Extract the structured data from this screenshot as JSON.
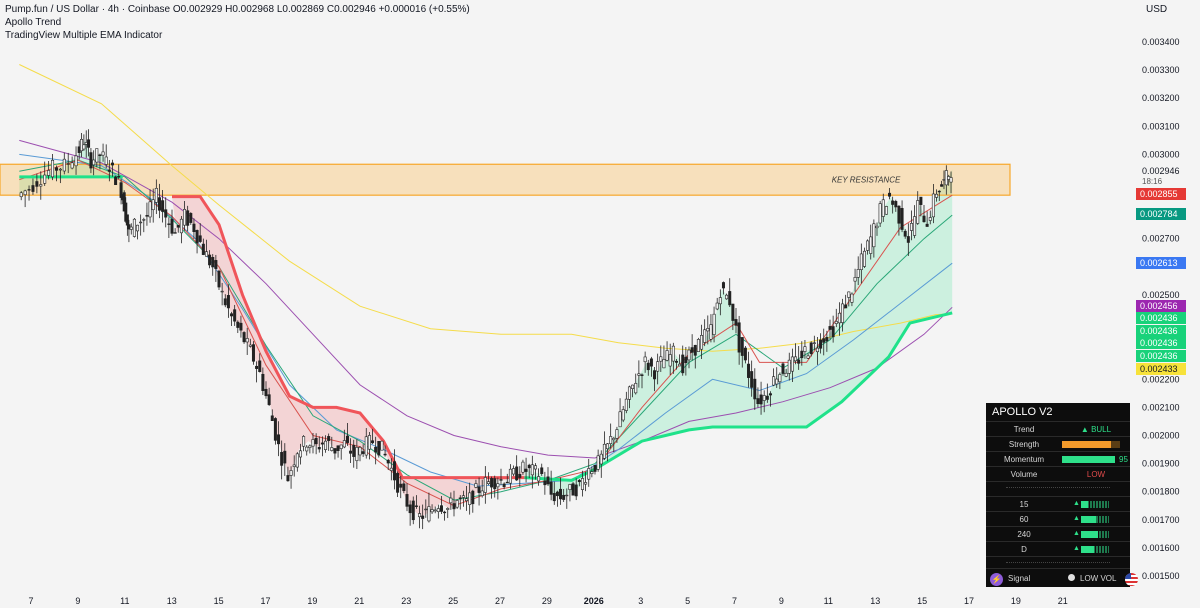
{
  "header": {
    "line1": "Pump.fun / US Dollar · 4h · Coinbase  O0.002929  H0.002968  L0.002869  C0.002946  +0.000016 (+0.55%)",
    "line2": "Apollo Trend",
    "line3": "TradingView Multiple EMA Indicator"
  },
  "currency": "USD",
  "chart_data": {
    "type": "candlestick",
    "symbol": "Pump.fun / US Dollar",
    "interval": "4h",
    "exchange": "Coinbase",
    "ohlc_last": {
      "open": 0.002929,
      "high": 0.002968,
      "low": 0.002869,
      "close": 0.002946,
      "change": "+0.000016",
      "change_pct": "+0.55%"
    },
    "ylim": [
      0.00146,
      0.00348
    ],
    "y_ticks": [
      "0.003400",
      "0.003300",
      "0.003200",
      "0.003100",
      "0.003000",
      "0.002700",
      "0.002500",
      "0.002200",
      "0.002100",
      "0.002000",
      "0.001900",
      "0.001800",
      "0.001700",
      "0.001600",
      "0.001500"
    ],
    "x_ticks": [
      "7",
      "9",
      "11",
      "13",
      "15",
      "17",
      "19",
      "21",
      "23",
      "25",
      "27",
      "29",
      "2026",
      "3",
      "5",
      "7",
      "9",
      "11",
      "13",
      "15",
      "17",
      "19",
      "21"
    ],
    "x_range_days": [
      6.5,
      22.5
    ],
    "key_resistance": {
      "label": "KEY RESISTANCE",
      "low": 0.002855,
      "high": 0.002965
    },
    "price_labels": [
      {
        "text": "0.002946",
        "kind": "current",
        "color": "#131722"
      },
      {
        "text": "18:16",
        "kind": "countdown",
        "color": "#131722"
      },
      {
        "text": "0.002855",
        "color": "#e53935"
      },
      {
        "text": "0.002784",
        "color": "#089981"
      },
      {
        "text": "0.002613",
        "color": "#3a78f2"
      },
      {
        "text": "0.002456",
        "color": "#9c27b0"
      },
      {
        "text": "0.002436",
        "color": "#18d27a"
      },
      {
        "text": "0.002436",
        "color": "#18d27a"
      },
      {
        "text": "0.002436",
        "color": "#18d27a"
      },
      {
        "text": "0.002436",
        "color": "#18d27a"
      },
      {
        "text": "0.002433",
        "color": "#f7e23a"
      }
    ],
    "price_series": [
      [
        6.5,
        0.00285
      ],
      [
        7.0,
        0.00288
      ],
      [
        7.5,
        0.00292
      ],
      [
        8.0,
        0.00295
      ],
      [
        8.5,
        0.00296
      ],
      [
        9.0,
        0.003
      ],
      [
        9.3,
        0.00305
      ],
      [
        9.6,
        0.00298
      ],
      [
        10.0,
        0.003
      ],
      [
        10.4,
        0.00296
      ],
      [
        10.8,
        0.0029
      ],
      [
        11.0,
        0.00282
      ],
      [
        11.2,
        0.00272
      ],
      [
        11.6,
        0.00276
      ],
      [
        12.0,
        0.00278
      ],
      [
        12.4,
        0.00285
      ],
      [
        12.8,
        0.00278
      ],
      [
        13.2,
        0.00272
      ],
      [
        13.6,
        0.00278
      ],
      [
        14.0,
        0.00274
      ],
      [
        14.4,
        0.00266
      ],
      [
        14.8,
        0.0026
      ],
      [
        15.2,
        0.0025
      ],
      [
        15.6,
        0.00242
      ],
      [
        16.0,
        0.00236
      ],
      [
        16.4,
        0.0023
      ],
      [
        16.8,
        0.00222
      ],
      [
        17.2,
        0.0021
      ],
      [
        17.6,
        0.00196
      ],
      [
        18.0,
        0.00185
      ],
      [
        18.4,
        0.00195
      ],
      [
        18.8,
        0.00198
      ],
      [
        19.2,
        0.00196
      ],
      [
        19.6,
        0.00198
      ],
      [
        20.0,
        0.00195
      ],
      [
        20.4,
        0.00197
      ],
      [
        20.8,
        0.00193
      ],
      [
        21.2,
        0.00196
      ],
      [
        21.6,
        0.00198
      ],
      [
        22.0,
        0.00195
      ],
      [
        22.4,
        0.00188
      ],
      [
        22.8,
        0.0018
      ],
      [
        23.2,
        0.00174
      ],
      [
        23.6,
        0.00171
      ],
      [
        24.0,
        0.00173
      ],
      [
        24.4,
        0.00176
      ],
      [
        24.8,
        0.00174
      ],
      [
        25.2,
        0.00177
      ],
      [
        25.6,
        0.00176
      ],
      [
        26.0,
        0.0018
      ],
      [
        26.4,
        0.00183
      ],
      [
        26.8,
        0.00184
      ],
      [
        27.2,
        0.00184
      ],
      [
        27.6,
        0.00186
      ],
      [
        28.0,
        0.00188
      ],
      [
        28.4,
        0.00187
      ],
      [
        28.8,
        0.00186
      ],
      [
        29.2,
        0.00179
      ],
      [
        29.6,
        0.00178
      ],
      [
        30.0,
        0.0018
      ],
      [
        30.4,
        0.00182
      ],
      [
        30.8,
        0.00188
      ],
      [
        31.2,
        0.0019
      ],
      [
        31.6,
        0.00196
      ],
      [
        32.0,
        0.00203
      ],
      [
        32.4,
        0.00212
      ],
      [
        32.8,
        0.0022
      ],
      [
        33.2,
        0.00226
      ],
      [
        33.6,
        0.00223
      ],
      [
        34.0,
        0.00227
      ],
      [
        34.4,
        0.00229
      ],
      [
        34.8,
        0.00225
      ],
      [
        35.2,
        0.0023
      ],
      [
        35.6,
        0.00234
      ],
      [
        36.0,
        0.00238
      ],
      [
        36.4,
        0.00252
      ],
      [
        36.8,
        0.00248
      ],
      [
        37.2,
        0.00232
      ],
      [
        37.6,
        0.00222
      ],
      [
        38.0,
        0.00212
      ],
      [
        38.4,
        0.00215
      ],
      [
        38.8,
        0.00222
      ],
      [
        39.2,
        0.00224
      ],
      [
        39.6,
        0.00226
      ],
      [
        40.0,
        0.0023
      ],
      [
        40.4,
        0.00232
      ],
      [
        40.8,
        0.00235
      ],
      [
        41.2,
        0.00238
      ],
      [
        41.6,
        0.00245
      ],
      [
        42.0,
        0.00252
      ],
      [
        42.4,
        0.00262
      ],
      [
        42.8,
        0.0027
      ],
      [
        43.2,
        0.0028
      ],
      [
        43.6,
        0.00285
      ],
      [
        44.0,
        0.00278
      ],
      [
        44.4,
        0.0027
      ],
      [
        44.8,
        0.00282
      ],
      [
        45.2,
        0.00276
      ],
      [
        45.6,
        0.00287
      ],
      [
        45.9,
        0.0029
      ],
      [
        46.2,
        0.002946
      ]
    ],
    "series": [
      {
        "name": "EMA (yellow)",
        "color": "#f5dc4a",
        "values": [
          [
            6.5,
            0.00332
          ],
          [
            10,
            0.00318
          ],
          [
            13,
            0.00296
          ],
          [
            15,
            0.00282
          ],
          [
            18,
            0.00262
          ],
          [
            21,
            0.00246
          ],
          [
            24,
            0.00238
          ],
          [
            27,
            0.00236
          ],
          [
            30,
            0.00236
          ],
          [
            32,
            0.00233
          ],
          [
            34,
            0.00231
          ],
          [
            36,
            0.0023
          ],
          [
            38,
            0.00231
          ],
          [
            40,
            0.00233
          ],
          [
            42,
            0.00237
          ],
          [
            44,
            0.0024
          ],
          [
            45.5,
            0.00243
          ],
          [
            46.2,
            0.002433
          ]
        ]
      },
      {
        "name": "EMA (purple)",
        "color": "#9c4fb0",
        "values": [
          [
            6.5,
            0.00305
          ],
          [
            10,
            0.00297
          ],
          [
            13,
            0.00283
          ],
          [
            15,
            0.0027
          ],
          [
            17,
            0.00254
          ],
          [
            19,
            0.00236
          ],
          [
            21,
            0.00218
          ],
          [
            23,
            0.00207
          ],
          [
            25,
            0.002
          ],
          [
            27,
            0.00196
          ],
          [
            29,
            0.00193
          ],
          [
            31,
            0.00192
          ],
          [
            33,
            0.00198
          ],
          [
            35,
            0.00205
          ],
          [
            37,
            0.00208
          ],
          [
            39,
            0.00212
          ],
          [
            41,
            0.00217
          ],
          [
            43,
            0.00224
          ],
          [
            45,
            0.00236
          ],
          [
            46.2,
            0.002456
          ]
        ]
      },
      {
        "name": "EMA (blue)",
        "color": "#5a9bd5",
        "values": [
          [
            6.5,
            0.003
          ],
          [
            10,
            0.00296
          ],
          [
            12,
            0.00285
          ],
          [
            14,
            0.0027
          ],
          [
            16,
            0.00245
          ],
          [
            18,
            0.00218
          ],
          [
            20,
            0.00202
          ],
          [
            22,
            0.00195
          ],
          [
            24,
            0.00187
          ],
          [
            26,
            0.00182
          ],
          [
            28,
            0.00183
          ],
          [
            30,
            0.00184
          ],
          [
            32,
            0.00195
          ],
          [
            34,
            0.00208
          ],
          [
            36,
            0.0022
          ],
          [
            38,
            0.00216
          ],
          [
            40,
            0.00222
          ],
          [
            42,
            0.00234
          ],
          [
            44,
            0.00247
          ],
          [
            46.2,
            0.002613
          ]
        ]
      },
      {
        "name": "EMA (green)",
        "color": "#2aa778",
        "values": [
          [
            6.5,
            0.00294
          ],
          [
            9,
            0.00298
          ],
          [
            11,
            0.00292
          ],
          [
            13,
            0.00277
          ],
          [
            15,
            0.0026
          ],
          [
            17,
            0.00232
          ],
          [
            19,
            0.00207
          ],
          [
            21,
            0.00198
          ],
          [
            23,
            0.00186
          ],
          [
            25,
            0.00177
          ],
          [
            27,
            0.0018
          ],
          [
            29,
            0.00184
          ],
          [
            31,
            0.0019
          ],
          [
            33,
            0.00208
          ],
          [
            35,
            0.00226
          ],
          [
            37,
            0.00236
          ],
          [
            39,
            0.00224
          ],
          [
            41,
            0.00234
          ],
          [
            43,
            0.00254
          ],
          [
            45,
            0.0027
          ],
          [
            46.2,
            0.002784
          ]
        ]
      },
      {
        "name": "EMA (red)",
        "color": "#d9534f",
        "values": [
          [
            6.5,
            0.00291
          ],
          [
            9,
            0.00298
          ],
          [
            11,
            0.0029
          ],
          [
            13,
            0.00278
          ],
          [
            15,
            0.0026
          ],
          [
            17,
            0.00225
          ],
          [
            19,
            0.002
          ],
          [
            21,
            0.00196
          ],
          [
            23,
            0.00183
          ],
          [
            25,
            0.00175
          ],
          [
            27,
            0.00181
          ],
          [
            29,
            0.00184
          ],
          [
            31,
            0.00188
          ],
          [
            33,
            0.0021
          ],
          [
            35,
            0.00229
          ],
          [
            37,
            0.0024
          ],
          [
            38,
            0.00226
          ],
          [
            40,
            0.00226
          ],
          [
            42,
            0.0025
          ],
          [
            44,
            0.00274
          ],
          [
            46.2,
            0.002855
          ]
        ]
      },
      {
        "name": "Apollo Trend (bearish stop)",
        "color": "#f0555a",
        "values": [
          [
            13,
            0.00285
          ],
          [
            14.2,
            0.00285
          ],
          [
            15,
            0.00275
          ],
          [
            16,
            0.0025
          ],
          [
            17,
            0.0023
          ],
          [
            18,
            0.00214
          ],
          [
            19,
            0.0021
          ],
          [
            20,
            0.0021
          ],
          [
            21,
            0.00208
          ],
          [
            22,
            0.00198
          ],
          [
            22.8,
            0.00185
          ],
          [
            24,
            0.00185
          ],
          [
            26,
            0.00185
          ],
          [
            28,
            0.00185
          ]
        ]
      },
      {
        "name": "Apollo Trend (bullish stop)",
        "color": "#1fe28a",
        "values": [
          [
            28,
            0.00185
          ],
          [
            30,
            0.00184
          ],
          [
            31,
            0.00188
          ],
          [
            32,
            0.00193
          ],
          [
            33,
            0.00198
          ],
          [
            34,
            0.002
          ],
          [
            35,
            0.00202
          ],
          [
            36,
            0.00203
          ],
          [
            38,
            0.00203
          ],
          [
            40,
            0.00203
          ],
          [
            41.5,
            0.00212
          ],
          [
            42.5,
            0.0022
          ],
          [
            43.5,
            0.00228
          ],
          [
            44.4,
            0.0024
          ],
          [
            46.2,
            0.002436
          ]
        ]
      }
    ]
  },
  "apollo_panel": {
    "title": "APOLLO V2",
    "rows": [
      {
        "label": "Trend",
        "value": "▲ BULL"
      },
      {
        "label": "Strength",
        "level": 0.85
      },
      {
        "label": "Momentum",
        "value": "95",
        "level": 0.95
      },
      {
        "label": "Volume",
        "value": "LOW"
      }
    ],
    "timeframes": [
      {
        "label": "15",
        "level": 0.25
      },
      {
        "label": "60",
        "level": 0.55
      },
      {
        "label": "240",
        "level": 0.6
      },
      {
        "label": "D",
        "level": 0.45
      }
    ],
    "signal_label": "Signal",
    "signal_value": "LOW VOL"
  }
}
